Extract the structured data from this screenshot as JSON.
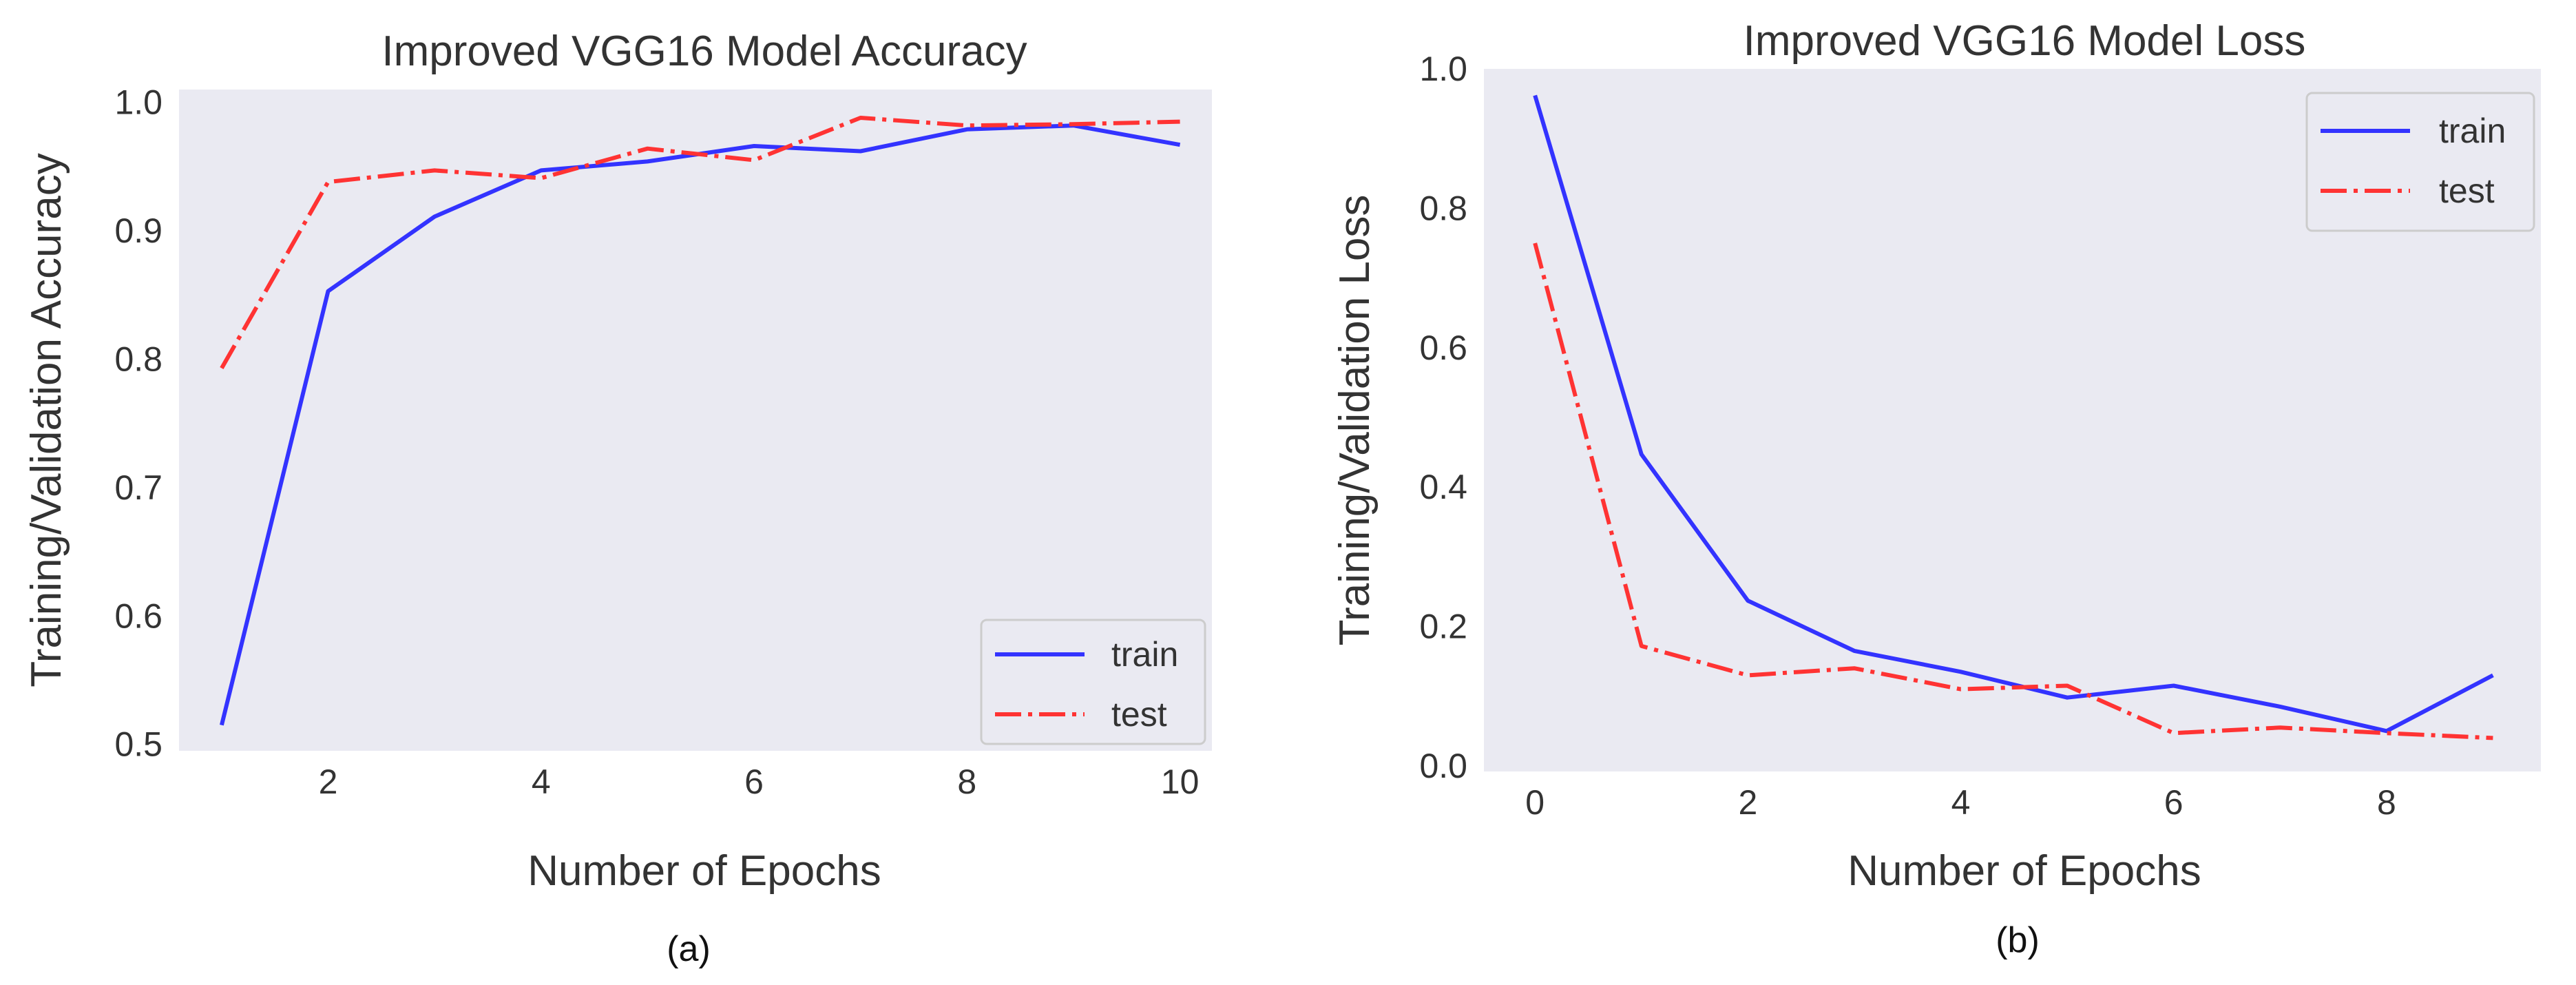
{
  "chart_data": [
    {
      "type": "line",
      "title": "Improved VGG16 Model Accuracy",
      "xlabel": "Number of Epochs",
      "ylabel": "Training/Validation Accuracy",
      "caption": "(a)",
      "xlim": [
        0.6,
        10.3
      ],
      "ylim": [
        0.495,
        1.01
      ],
      "xticks": [
        2,
        4,
        6,
        8,
        10
      ],
      "xtick_labels": [
        "2",
        "4",
        "6",
        "8",
        "10"
      ],
      "yticks": [
        0.5,
        0.6,
        0.7,
        0.8,
        0.9,
        1.0
      ],
      "ytick_labels": [
        "0.5",
        "0.6",
        "0.7",
        "0.8",
        "0.9",
        "1.0"
      ],
      "grid": false,
      "legend_position": "lower-right",
      "x": [
        1,
        2,
        3,
        4,
        5,
        6,
        7,
        8,
        9,
        10
      ],
      "series": [
        {
          "name": "train",
          "color": "#3333ff",
          "style": "solid",
          "values": [
            0.515,
            0.853,
            0.911,
            0.947,
            0.954,
            0.966,
            0.962,
            0.979,
            0.982,
            0.967
          ]
        },
        {
          "name": "test",
          "color": "#ff3333",
          "style": "dashdot",
          "values": [
            0.793,
            0.938,
            0.947,
            0.941,
            0.964,
            0.955,
            0.988,
            0.982,
            0.983,
            0.985
          ]
        }
      ]
    },
    {
      "type": "line",
      "title": "Improved VGG16 Model Loss",
      "xlabel": "Number of Epochs",
      "ylabel": "Training/Validation Loss",
      "caption": "(b)",
      "xlim": [
        -0.48,
        9.45
      ],
      "ylim": [
        -0.008,
        1.0
      ],
      "xticks": [
        0,
        2,
        4,
        6,
        8
      ],
      "xtick_labels": [
        "0",
        "2",
        "4",
        "6",
        "8"
      ],
      "yticks": [
        0.0,
        0.2,
        0.4,
        0.6,
        0.8,
        1.0
      ],
      "ytick_labels": [
        "0.0",
        "0.2",
        "0.4",
        "0.6",
        "0.8",
        "1.0"
      ],
      "grid": false,
      "legend_position": "top-right",
      "x": [
        0,
        1,
        2,
        3,
        4,
        5,
        6,
        7,
        8,
        9
      ],
      "series": [
        {
          "name": "train",
          "color": "#3333ff",
          "style": "solid",
          "values": [
            0.962,
            0.447,
            0.237,
            0.165,
            0.135,
            0.098,
            0.115,
            0.085,
            0.05,
            0.13
          ]
        },
        {
          "name": "test",
          "color": "#ff3333",
          "style": "dashdot",
          "values": [
            0.75,
            0.172,
            0.13,
            0.14,
            0.11,
            0.115,
            0.047,
            0.055,
            0.047,
            0.04
          ]
        }
      ]
    }
  ]
}
